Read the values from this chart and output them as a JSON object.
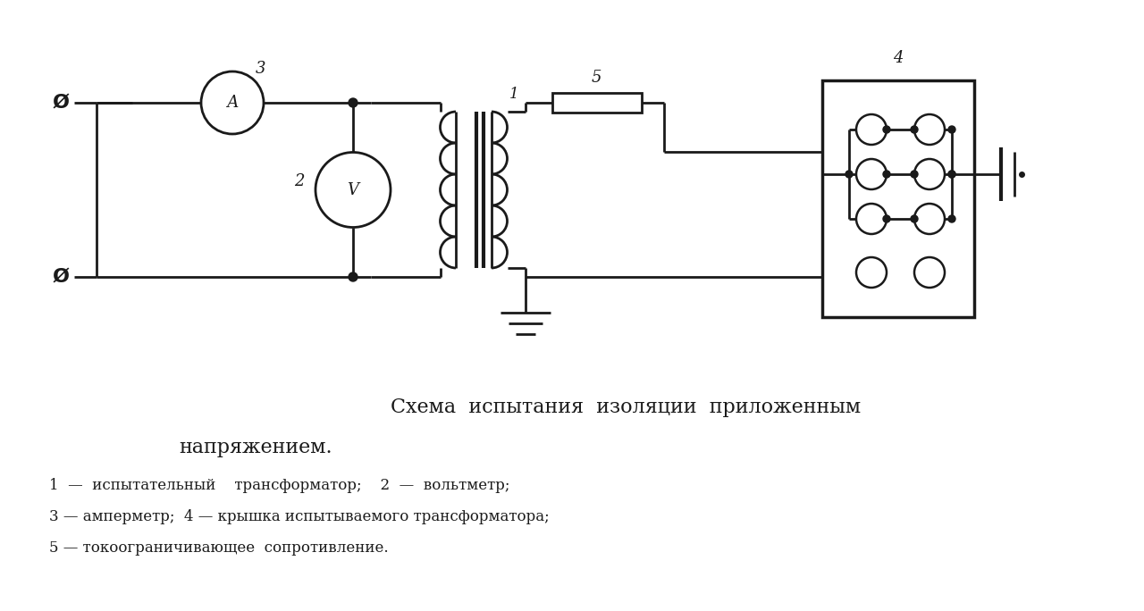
{
  "background_color": "#ffffff",
  "line_color": "#1a1a1a",
  "title_line1": "Схема  испытания  изоляции  приложенным",
  "title_line2": "напряжением.",
  "caption_line1": "1  —  испытательный    трансформатор;    2  —  вольтметр;",
  "caption_line2": "3 — амперметр;  4 — крышка испытываемого трансформатора;",
  "caption_line3": "5 — токоограничивающее  сопротивление.",
  "title_fontsize": 16,
  "caption_fontsize": 12,
  "lw": 2.0
}
